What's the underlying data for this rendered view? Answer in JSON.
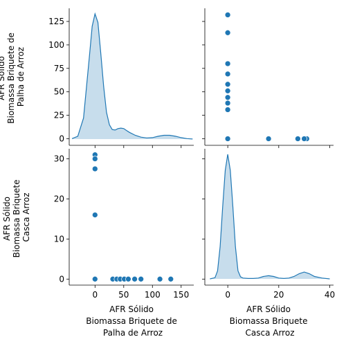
{
  "chart_data": {
    "type": "pairplot",
    "variables": [
      "AFR Sólido\nBiomassa Briquete de\nPalha de Arroz",
      "AFR Sólido\nBiomassa Briquete\nCasca Arroz"
    ],
    "color": "#1f77b4",
    "scatter_points": [
      {
        "palha": 0,
        "casca": 31
      },
      {
        "palha": 0,
        "casca": 30
      },
      {
        "palha": 0,
        "casca": 27.5
      },
      {
        "palha": 0,
        "casca": 16
      },
      {
        "palha": 0,
        "casca": 0
      },
      {
        "palha": 31,
        "casca": 0
      },
      {
        "palha": 38,
        "casca": 0
      },
      {
        "palha": 44,
        "casca": 0
      },
      {
        "palha": 51,
        "casca": 0
      },
      {
        "palha": 58,
        "casca": 0
      },
      {
        "palha": 69,
        "casca": 0
      },
      {
        "palha": 80,
        "casca": 0
      },
      {
        "palha": 113,
        "casca": 0
      },
      {
        "palha": 132,
        "casca": 0
      }
    ],
    "kde_palha": {
      "x": [
        -40,
        -30,
        -20,
        -10,
        -5,
        0,
        5,
        10,
        15,
        20,
        25,
        30,
        35,
        40,
        45,
        50,
        55,
        60,
        70,
        80,
        90,
        100,
        110,
        120,
        130,
        140,
        150,
        160,
        170
      ],
      "density": [
        0.5,
        3,
        22,
        85,
        118,
        131,
        122,
        90,
        55,
        28,
        15,
        10,
        9.5,
        11,
        11.5,
        11,
        9,
        7,
        4,
        2,
        1.2,
        1.5,
        3,
        4,
        4,
        3,
        1.5,
        0.5,
        0.1
      ]
    },
    "kde_casca": {
      "x": [
        -7,
        -5,
        -4,
        -3,
        -2,
        -1,
        0,
        1,
        2,
        3,
        4,
        5,
        6,
        8,
        10,
        12,
        14,
        16,
        18,
        20,
        22,
        24,
        26,
        28,
        30,
        32,
        34,
        37,
        40
      ],
      "density": [
        0,
        0.3,
        2,
        8,
        18,
        27,
        31,
        27,
        18,
        8,
        2,
        0.5,
        0.2,
        0.1,
        0.1,
        0.2,
        0.6,
        0.8,
        0.6,
        0.2,
        0.1,
        0.2,
        0.6,
        1.3,
        1.7,
        1.3,
        0.6,
        0.2,
        0
      ]
    },
    "axes": {
      "palha_range": [
        -45,
        172
      ],
      "palha_ticks": [
        0,
        25,
        50,
        75,
        100,
        125
      ],
      "palha_xticks": [
        0,
        50,
        100,
        150
      ],
      "casca_range": [
        -9,
        41.5
      ],
      "casca_ticks": [
        0,
        10,
        20,
        30
      ],
      "casca_xticks": [
        0,
        20,
        40
      ],
      "palha_yrange": [
        -7,
        139
      ],
      "casca_yrange": [
        -1.5,
        32.5
      ]
    }
  },
  "labels": {
    "y_top": [
      "AFR Sólido",
      "Biomassa Briquete de",
      "Palha de Arroz"
    ],
    "y_bottom": [
      "AFR Sólido",
      "Biomassa Briquete",
      "Casca Arroz"
    ],
    "x_left": [
      "AFR Sólido",
      "Biomassa Briquete de",
      "Palha de Arroz"
    ],
    "x_right": [
      "AFR Sólido",
      "Biomassa Briquete",
      "Casca Arroz"
    ]
  }
}
